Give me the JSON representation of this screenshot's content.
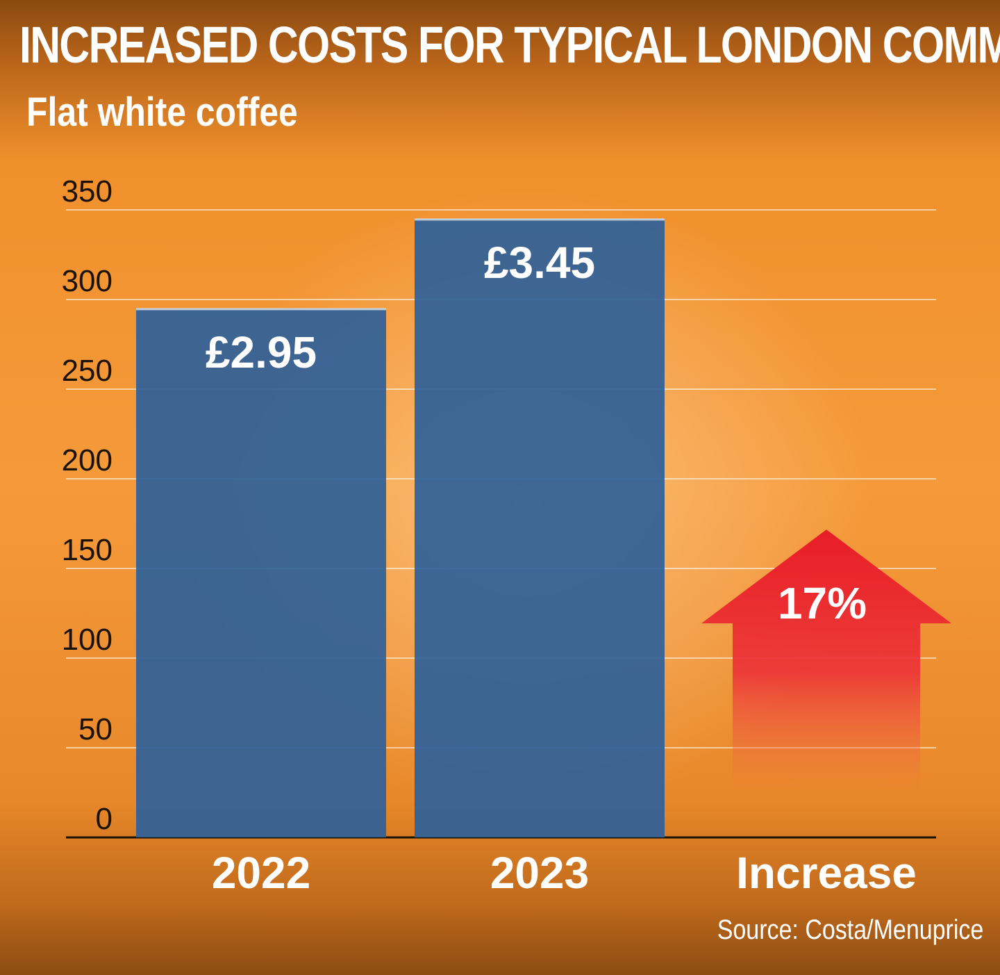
{
  "title": "INCREASED COSTS FOR TYPICAL LONDON COMMUTER",
  "subtitle": "Flat white coffee",
  "source": "Source: Costa/Menuprice",
  "colors": {
    "bar": "#2f6199",
    "increase_arrow": "#e8202a",
    "gridline": "#ffffff",
    "text": "#ffffff"
  },
  "chart_data": {
    "type": "bar",
    "categories": [
      "2022",
      "2023",
      "Increase"
    ],
    "values": [
      295,
      345,
      null
    ],
    "value_labels": [
      "£2.95",
      "£3.45",
      "17%"
    ],
    "increase_percent": 17,
    "yticks": [
      "0",
      "50",
      "100",
      "150",
      "200",
      "250",
      "300",
      "350"
    ],
    "ylim": [
      0,
      350
    ],
    "grid": true
  }
}
